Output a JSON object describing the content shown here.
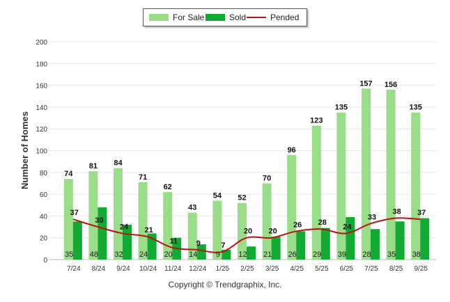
{
  "chart_data": {
    "type": "bar",
    "title": "",
    "xlabel": "",
    "ylabel": "Number of Homes",
    "ylim": [
      0,
      200
    ],
    "yticks": [
      0,
      20,
      40,
      60,
      80,
      100,
      120,
      140,
      160,
      180,
      200
    ],
    "categories": [
      "7/24",
      "8/24",
      "9/24",
      "10/24",
      "11/24",
      "12/24",
      "1/25",
      "2/25",
      "3/25",
      "4/25",
      "5/25",
      "6/25",
      "7/25",
      "8/25",
      "9/25"
    ],
    "series": [
      {
        "name": "For Sale",
        "type": "bar",
        "color": "#99dd88",
        "values": [
          74,
          81,
          84,
          71,
          62,
          43,
          54,
          52,
          70,
          96,
          123,
          135,
          157,
          156,
          135
        ]
      },
      {
        "name": "Sold",
        "type": "bar",
        "color": "#11aa33",
        "values": [
          35,
          48,
          32,
          24,
          20,
          14,
          9,
          12,
          21,
          26,
          29,
          39,
          28,
          35,
          38
        ]
      },
      {
        "name": "Pended",
        "type": "line",
        "color": "#bb1111",
        "values": [
          37,
          30,
          24,
          21,
          11,
          9,
          7,
          20,
          20,
          26,
          28,
          24,
          33,
          38,
          37
        ]
      }
    ],
    "legend_position": "top-center",
    "grid": true
  },
  "legend": {
    "for_sale": "For Sale",
    "sold": "Sold",
    "pended": "Pended"
  },
  "footer": {
    "copyright": "Copyright © Trendgraphix, Inc."
  }
}
